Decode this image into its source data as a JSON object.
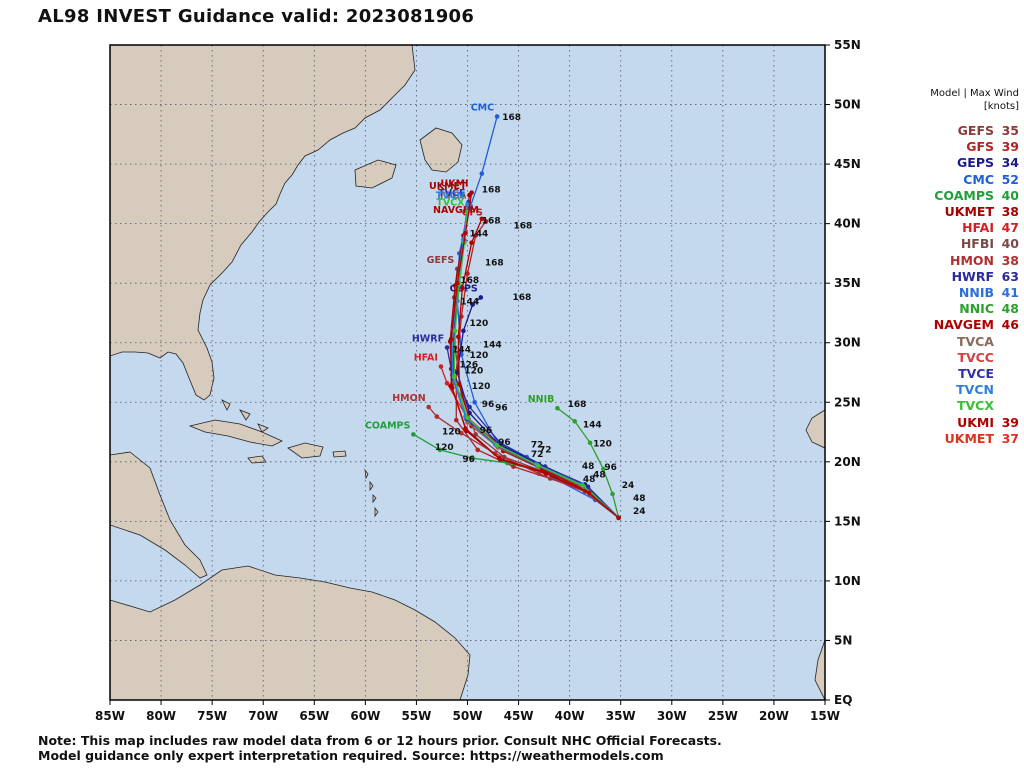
{
  "title": "AL98 INVEST Guidance valid: 2023081906",
  "note_lines": [
    "Note: This map includes raw model data from 6 or 12 hours prior. Consult NHC Official Forecasts.",
    "Model guidance only expert interpretation required. Source: https://weathermodels.com"
  ],
  "map": {
    "ocean_color": "#c4d8ee",
    "land_color": "#d6cbbd",
    "lon_labels": [
      "85W",
      "80W",
      "75W",
      "70W",
      "65W",
      "60W",
      "55W",
      "50W",
      "45W",
      "40W",
      "35W",
      "30W",
      "25W",
      "20W",
      "15W"
    ],
    "lat_labels": [
      "EQ",
      "5N",
      "10N",
      "15N",
      "20N",
      "25N",
      "30N",
      "35N",
      "40N",
      "45N",
      "50N",
      "55N"
    ]
  },
  "legend": {
    "header_line1": "Model | Max Wind",
    "header_line2": "[knots]",
    "items": [
      {
        "model": "GEFS",
        "wind": "35",
        "color": "#8b3a3a"
      },
      {
        "model": "GFS",
        "wind": "39",
        "color": "#b22222"
      },
      {
        "model": "GEPS",
        "wind": "34",
        "color": "#1a1a8c"
      },
      {
        "model": "CMC",
        "wind": "52",
        "color": "#1f5fd6"
      },
      {
        "model": "COAMPS",
        "wind": "40",
        "color": "#1f9e3a"
      },
      {
        "model": "UKMET",
        "wind": "38",
        "color": "#a50000"
      },
      {
        "model": "HFAI",
        "wind": "47",
        "color": "#d42020"
      },
      {
        "model": "HFBI",
        "wind": "40",
        "color": "#7a4a4a"
      },
      {
        "model": "HMON",
        "wind": "38",
        "color": "#b03030"
      },
      {
        "model": "HWRF",
        "wind": "63",
        "color": "#2a2a9e"
      },
      {
        "model": "NNIB",
        "wind": "41",
        "color": "#2f6fd8"
      },
      {
        "model": "NNIC",
        "wind": "48",
        "color": "#2ea02e"
      },
      {
        "model": "NAVGEM",
        "wind": "46",
        "color": "#b00000"
      },
      {
        "model": "TVCA",
        "wind": "",
        "color": "#8b6a5a"
      },
      {
        "model": "TVCC",
        "wind": "",
        "color": "#d64040"
      },
      {
        "model": "TVCE",
        "wind": "",
        "color": "#3030a8"
      },
      {
        "model": "TVCN",
        "wind": "",
        "color": "#2f7fd8"
      },
      {
        "model": "TVCX",
        "wind": "",
        "color": "#36c236"
      },
      {
        "model": "UKMI",
        "wind": "39",
        "color": "#b00000"
      },
      {
        "model": "UKMET",
        "wind": "37",
        "color": "#e0301e"
      }
    ]
  },
  "tracks": [
    {
      "model": "CMC",
      "label": "CMC",
      "color": "#1f5fd6",
      "points": [
        [
          -35.2,
          15.3
        ],
        [
          -37.5,
          16.8
        ],
        [
          -41.5,
          18.6
        ],
        [
          -44.2,
          20.4
        ],
        [
          -47.2,
          21.8
        ],
        [
          -49.3,
          25.0
        ],
        [
          -50.6,
          29.0
        ],
        [
          -51.0,
          33.5
        ],
        [
          -50.8,
          37.5
        ],
        [
          -49.7,
          41.5
        ],
        [
          -48.6,
          44.2
        ],
        [
          -47.1,
          49.0
        ]
      ],
      "end_hour": "168"
    },
    {
      "model": "GFS",
      "label": "GFS",
      "color": "#b22222",
      "points": [
        [
          -35.2,
          15.3
        ],
        [
          -38.0,
          17.4
        ],
        [
          -41.9,
          18.6
        ],
        [
          -45.5,
          19.6
        ],
        [
          -49.0,
          21.0
        ],
        [
          -51.1,
          23.5
        ],
        [
          -51.1,
          27.6
        ],
        [
          -50.6,
          32.2
        ],
        [
          -50.0,
          35.8
        ],
        [
          -49.2,
          39.0
        ],
        [
          -48.2,
          40.2
        ]
      ],
      "end_hour": "168"
    },
    {
      "model": "GEFS",
      "label": "GEFS",
      "color": "#8b3a3a",
      "points": [
        [
          -35.2,
          15.3
        ],
        [
          -38.3,
          17.8
        ],
        [
          -42.6,
          19.2
        ],
        [
          -46.4,
          20.4
        ],
        [
          -49.2,
          22.3
        ],
        [
          -50.6,
          25.6
        ],
        [
          -51.2,
          29.6
        ],
        [
          -51.3,
          33.8
        ],
        [
          -51.0,
          36.2
        ]
      ],
      "end_hour": "168"
    },
    {
      "model": "GEPS",
      "label": "GEPS",
      "color": "#1a1a8c",
      "points": [
        [
          -35.2,
          15.3
        ],
        [
          -38.5,
          18.1
        ],
        [
          -43.0,
          19.8
        ],
        [
          -47.0,
          21.5
        ],
        [
          -49.8,
          24.1
        ],
        [
          -51.0,
          27.5
        ],
        [
          -50.4,
          31.0
        ],
        [
          -49.5,
          33.2
        ],
        [
          -48.7,
          33.8
        ]
      ],
      "end_hour": "168"
    },
    {
      "model": "COAMPS",
      "label": "COAMPS",
      "color": "#1f9e3a",
      "points": [
        [
          -35.2,
          15.3
        ],
        [
          -38.2,
          17.8
        ],
        [
          -42.2,
          19.1
        ],
        [
          -46.1,
          19.9
        ],
        [
          -49.5,
          20.3
        ],
        [
          -52.7,
          21.0
        ],
        [
          -55.3,
          22.3
        ]
      ],
      "end_hour": "120"
    },
    {
      "model": "UKMET",
      "label": "UKMET",
      "color": "#a50000",
      "points": [
        [
          -35.2,
          15.3
        ],
        [
          -38.0,
          17.3
        ],
        [
          -42.3,
          19.0
        ],
        [
          -46.8,
          20.2
        ],
        [
          -50.1,
          22.6
        ],
        [
          -51.5,
          26.2
        ],
        [
          -51.7,
          30.1
        ],
        [
          -51.2,
          34.8
        ],
        [
          -50.4,
          39.0
        ],
        [
          -49.8,
          42.4
        ]
      ],
      "end_hour": "168"
    },
    {
      "model": "HFAI",
      "label": "HFAI",
      "color": "#d42020",
      "points": [
        [
          -35.2,
          15.3
        ],
        [
          -38.3,
          17.6
        ],
        [
          -42.6,
          19.4
        ],
        [
          -46.8,
          21.3
        ],
        [
          -50.1,
          23.8
        ],
        [
          -52.0,
          26.6
        ],
        [
          -52.6,
          28.0
        ]
      ],
      "end_hour": "126"
    },
    {
      "model": "HMON",
      "label": "HMON",
      "color": "#b03030",
      "points": [
        [
          -35.2,
          15.3
        ],
        [
          -38.5,
          17.5
        ],
        [
          -43.0,
          19.0
        ],
        [
          -47.3,
          20.7
        ],
        [
          -50.6,
          22.4
        ],
        [
          -53.0,
          23.8
        ],
        [
          -53.8,
          24.6
        ]
      ],
      "end_hour": "120"
    },
    {
      "model": "HWRF",
      "label": "HWRF",
      "color": "#2a2a9e",
      "points": [
        [
          -35.2,
          15.3
        ],
        [
          -38.2,
          17.9
        ],
        [
          -42.4,
          19.6
        ],
        [
          -46.7,
          21.5
        ],
        [
          -49.8,
          24.6
        ],
        [
          -51.6,
          27.8
        ],
        [
          -52.0,
          29.6
        ]
      ],
      "end_hour": "126"
    },
    {
      "model": "NNIB",
      "label": "NNIB",
      "color": "#2ea02e",
      "points": [
        [
          -35.2,
          15.3
        ],
        [
          -35.8,
          17.3
        ],
        [
          -36.7,
          19.4
        ],
        [
          -38.0,
          21.6
        ],
        [
          -39.5,
          23.4
        ],
        [
          -41.2,
          24.5
        ]
      ],
      "end_hour": "168"
    },
    {
      "model": "NAVGEM",
      "label": "NAVGEM",
      "color": "#b00000",
      "points": [
        [
          -35.2,
          15.3
        ],
        [
          -38.4,
          17.6
        ],
        [
          -42.7,
          19.4
        ],
        [
          -46.5,
          20.9
        ],
        [
          -49.6,
          23.0
        ],
        [
          -50.8,
          26.5
        ],
        [
          -50.9,
          30.5
        ],
        [
          -50.5,
          34.6
        ],
        [
          -49.6,
          38.4
        ],
        [
          -48.6,
          40.4
        ]
      ],
      "end_hour": "168"
    },
    {
      "model": "TVCA",
      "label": "TVCA",
      "color": "#8b6a5a",
      "points": [
        [
          -35.2,
          15.3
        ],
        [
          -38.6,
          17.9
        ],
        [
          -43.0,
          19.6
        ],
        [
          -47.0,
          21.2
        ],
        [
          -50.0,
          23.3
        ],
        [
          -51.3,
          26.6
        ],
        [
          -51.4,
          30.6
        ],
        [
          -51.0,
          34.6
        ],
        [
          -50.4,
          38.5
        ],
        [
          -49.8,
          41.6
        ]
      ],
      "end_hour": "168"
    },
    {
      "model": "TVCE",
      "label": "TVCE",
      "color": "#3030a8",
      "points": [
        [
          -35.2,
          15.3
        ],
        [
          -38.7,
          18.0
        ],
        [
          -43.2,
          19.7
        ],
        [
          -47.2,
          21.4
        ],
        [
          -50.1,
          23.6
        ],
        [
          -51.4,
          27.0
        ],
        [
          -51.3,
          30.9
        ],
        [
          -50.8,
          34.8
        ],
        [
          -50.3,
          38.6
        ],
        [
          -49.9,
          41.8
        ]
      ],
      "end_hour": "168"
    },
    {
      "model": "TVCN",
      "label": "TVCN",
      "color": "#2f7fd8",
      "points": [
        [
          -35.2,
          15.3
        ],
        [
          -38.8,
          18.1
        ],
        [
          -43.3,
          19.8
        ],
        [
          -47.3,
          21.5
        ],
        [
          -50.2,
          23.8
        ],
        [
          -51.5,
          27.3
        ],
        [
          -51.4,
          31.1
        ],
        [
          -51.0,
          35.0
        ],
        [
          -50.4,
          38.7
        ],
        [
          -50.0,
          41.6
        ]
      ],
      "end_hour": "168"
    },
    {
      "model": "TVCX",
      "label": "TVCX",
      "color": "#36c236",
      "points": [
        [
          -35.2,
          15.3
        ],
        [
          -38.7,
          18.0
        ],
        [
          -43.1,
          19.7
        ],
        [
          -47.1,
          21.4
        ],
        [
          -50.0,
          23.7
        ],
        [
          -51.3,
          27.1
        ],
        [
          -51.2,
          31.0
        ],
        [
          -50.8,
          34.9
        ],
        [
          -50.3,
          38.4
        ],
        [
          -50.0,
          41.0
        ]
      ],
      "end_hour": "168"
    },
    {
      "model": "UKMI",
      "label": "UKMI",
      "color": "#b00000",
      "points": [
        [
          -35.2,
          15.3
        ],
        [
          -38.1,
          17.4
        ],
        [
          -42.4,
          19.1
        ],
        [
          -46.9,
          20.3
        ],
        [
          -50.2,
          22.8
        ],
        [
          -51.6,
          26.4
        ],
        [
          -51.6,
          30.3
        ],
        [
          -51.0,
          35.0
        ],
        [
          -50.2,
          39.2
        ],
        [
          -49.6,
          42.6
        ]
      ],
      "end_hour": "168"
    }
  ],
  "hour_labels": [
    {
      "text": "168",
      "lon": -46.6,
      "lat": 48.7
    },
    {
      "text": "168",
      "lon": -48.6,
      "lat": 42.6
    },
    {
      "text": "168",
      "lon": -48.6,
      "lat": 40.0
    },
    {
      "text": "168",
      "lon": -45.5,
      "lat": 39.6
    },
    {
      "text": "168",
      "lon": -48.3,
      "lat": 36.5
    },
    {
      "text": "168",
      "lon": -50.7,
      "lat": 35.0
    },
    {
      "text": "168",
      "lon": -45.6,
      "lat": 33.6
    },
    {
      "text": "144",
      "lon": -49.8,
      "lat": 38.9
    },
    {
      "text": "144",
      "lon": -50.7,
      "lat": 33.2
    },
    {
      "text": "144",
      "lon": -48.5,
      "lat": 29.6
    },
    {
      "text": "144",
      "lon": -51.5,
      "lat": 29.2
    },
    {
      "text": "120",
      "lon": -49.8,
      "lat": 31.4
    },
    {
      "text": "120",
      "lon": -49.8,
      "lat": 28.7
    },
    {
      "text": "120",
      "lon": -50.3,
      "lat": 27.4
    },
    {
      "text": "120",
      "lon": -49.6,
      "lat": 26.1
    },
    {
      "text": "120",
      "lon": -52.5,
      "lat": 22.3
    },
    {
      "text": "120",
      "lon": -53.2,
      "lat": 21.0
    },
    {
      "text": "126",
      "lon": -50.8,
      "lat": 27.9
    },
    {
      "text": "96",
      "lon": -48.6,
      "lat": 24.6
    },
    {
      "text": "96",
      "lon": -47.3,
      "lat": 24.3
    },
    {
      "text": "96",
      "lon": -48.8,
      "lat": 22.4
    },
    {
      "text": "96",
      "lon": -50.5,
      "lat": 20.0
    },
    {
      "text": "96",
      "lon": -47.0,
      "lat": 21.4
    },
    {
      "text": "72",
      "lon": -43.8,
      "lat": 21.2
    },
    {
      "text": "72",
      "lon": -43.0,
      "lat": 20.8
    },
    {
      "text": "72",
      "lon": -43.8,
      "lat": 20.4
    },
    {
      "text": "48",
      "lon": -38.8,
      "lat": 19.4
    },
    {
      "text": "48",
      "lon": -37.7,
      "lat": 18.7
    },
    {
      "text": "48",
      "lon": -38.7,
      "lat": 18.3
    },
    {
      "text": "48",
      "lon": -33.8,
      "lat": 16.7
    },
    {
      "text": "24",
      "lon": -34.9,
      "lat": 17.8
    },
    {
      "text": "24",
      "lon": -33.8,
      "lat": 15.6
    },
    {
      "text": "168",
      "lon": -40.2,
      "lat": 24.6
    },
    {
      "text": "144",
      "lon": -38.7,
      "lat": 22.9
    },
    {
      "text": "120",
      "lon": -37.7,
      "lat": 21.3
    },
    {
      "text": "96",
      "lon": -36.6,
      "lat": 19.3
    }
  ]
}
